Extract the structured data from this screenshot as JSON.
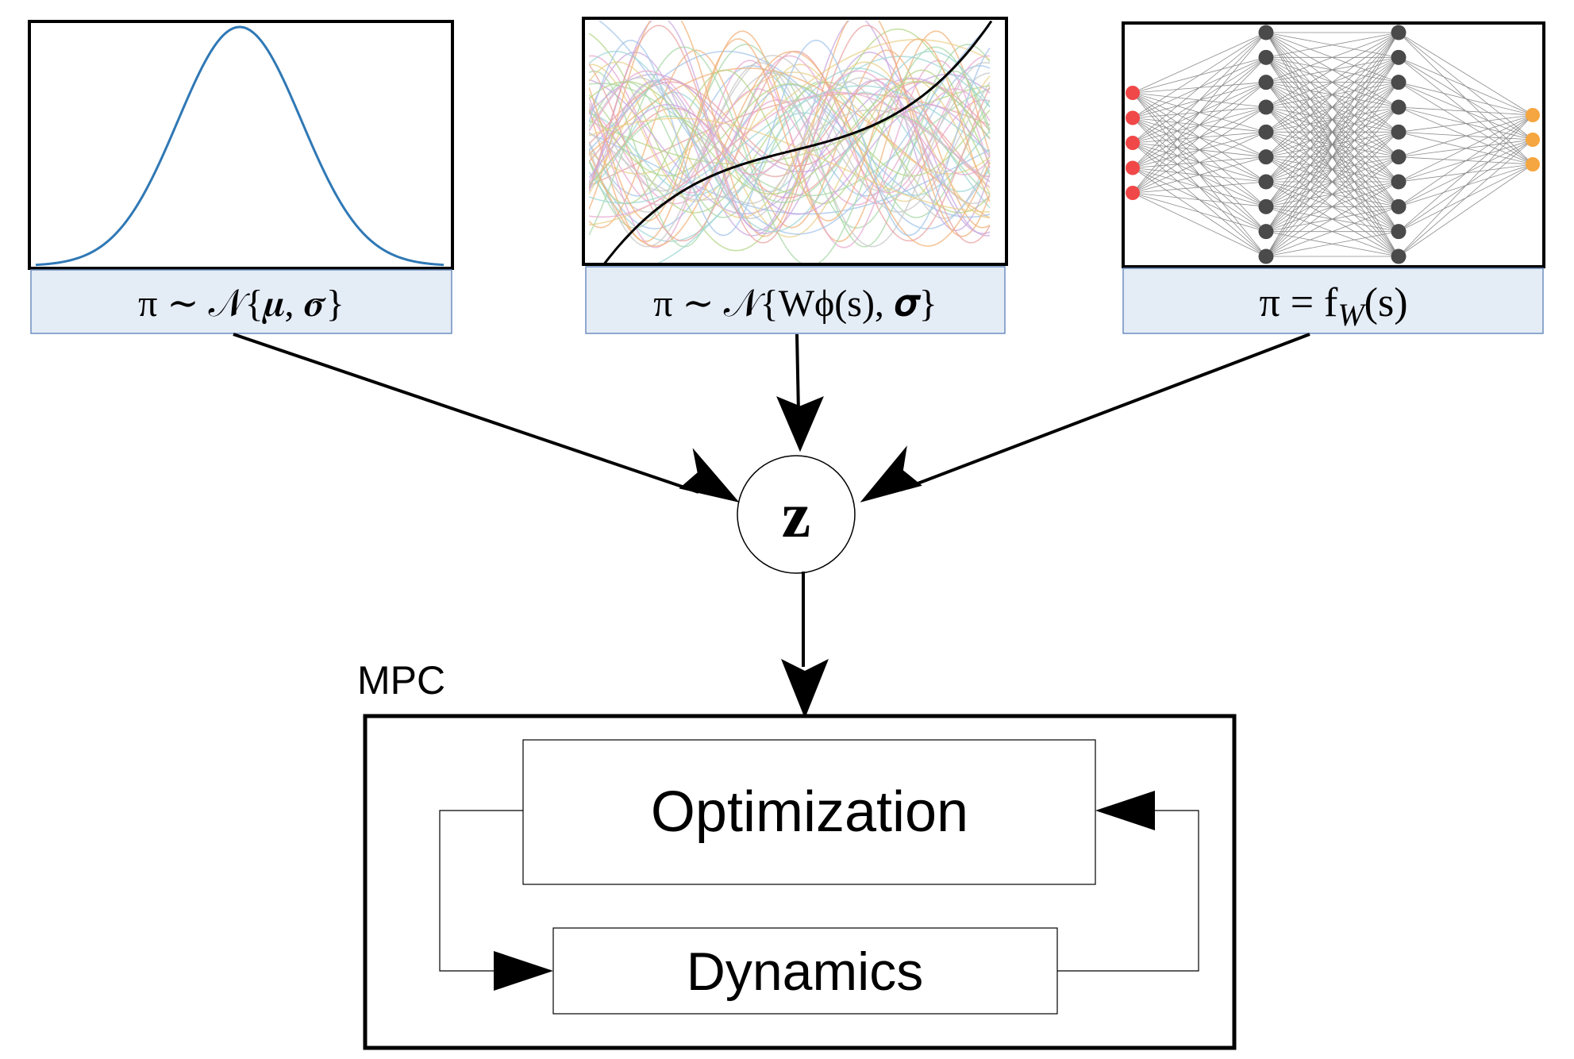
{
  "panels": {
    "gaussian": {
      "caption": "π ∼ 𝒩{𝝁, 𝝈}",
      "curve_color": "#2f78b5"
    },
    "basis": {
      "caption": "π ∼ 𝒩{Wϕ(s), 𝝈}",
      "curve_color": "#000000"
    },
    "network": {
      "caption": "π = f",
      "caption_sub": "W",
      "caption_tail": "(s)",
      "layers": [
        5,
        10,
        10,
        3
      ],
      "input_color": "#f04848",
      "hidden_color": "#4a4a4a",
      "output_color": "#f5a640"
    },
    "caption_fill": "#e4ecf6",
    "caption_stroke": "#6e8fbf"
  },
  "latent": {
    "label": "z"
  },
  "mpc": {
    "label": "MPC",
    "optimization_label": "Optimization",
    "dynamics_label": "Dynamics"
  }
}
